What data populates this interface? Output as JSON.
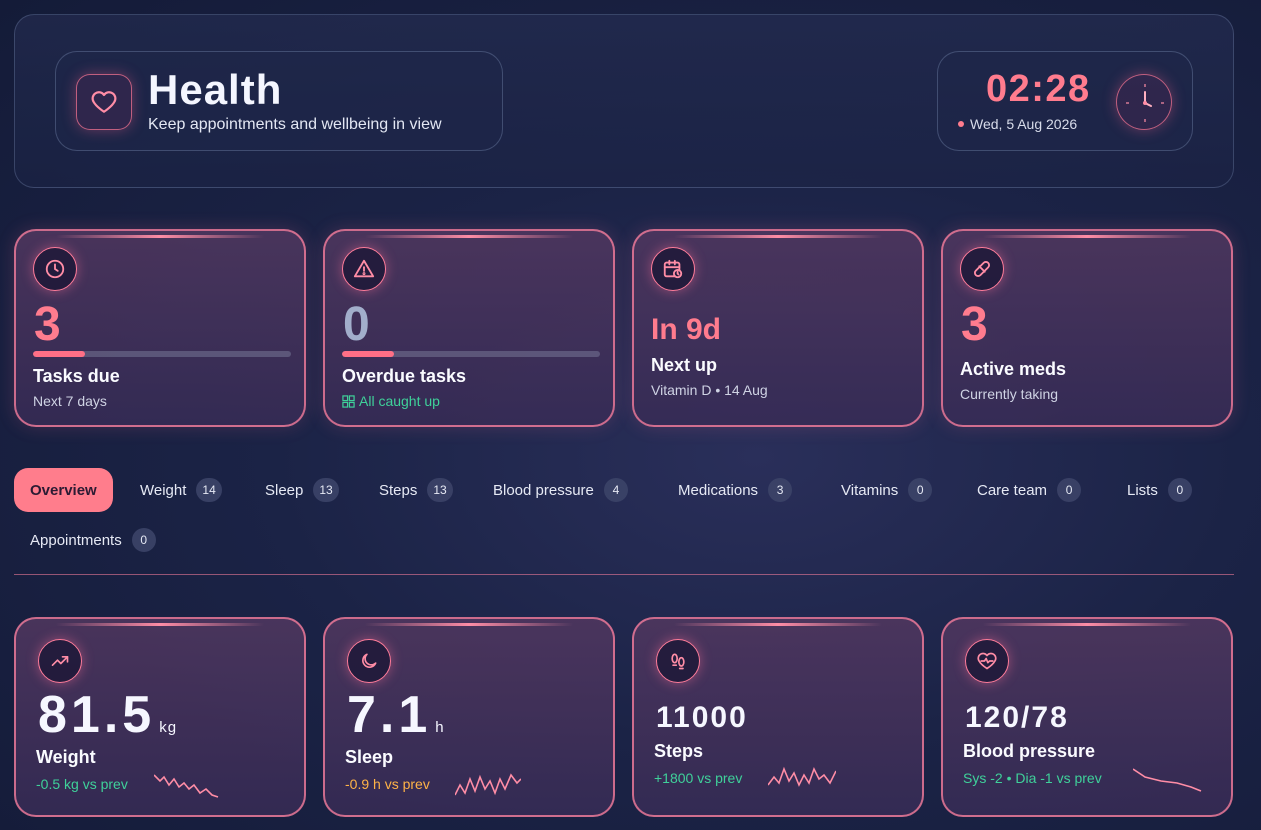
{
  "header": {
    "title": "Health",
    "subtitle": "Keep appointments and wellbeing in view",
    "icon": "heart-icon",
    "time": "02:28",
    "date": "Wed, 5 Aug 2026",
    "accent_color": "#ff7c8e"
  },
  "summary_cards": [
    {
      "icon": "clock-icon",
      "value": "3",
      "label": "Tasks due",
      "sub": "Next 7 days",
      "progress": 0.2
    },
    {
      "icon": "warning-icon",
      "value": "0",
      "label": "Overdue tasks",
      "sub": "All caught up",
      "progress": 0.2
    },
    {
      "icon": "calendar-clock-icon",
      "value": "In 9d",
      "label": "Next up",
      "sub": "Vitamin D • 14 Aug"
    },
    {
      "icon": "pill-icon",
      "value": "3",
      "label": "Active meds",
      "sub": "Currently taking"
    }
  ],
  "tabs": [
    {
      "label": "Overview",
      "count": null,
      "active": true
    },
    {
      "label": "Weight",
      "count": "14"
    },
    {
      "label": "Sleep",
      "count": "13"
    },
    {
      "label": "Steps",
      "count": "13"
    },
    {
      "label": "Blood pressure",
      "count": "4"
    },
    {
      "label": "Medications",
      "count": "3"
    },
    {
      "label": "Vitamins",
      "count": "0"
    },
    {
      "label": "Care team",
      "count": "0"
    },
    {
      "label": "Lists",
      "count": "0"
    },
    {
      "label": "Appointments",
      "count": "0"
    }
  ],
  "metrics": [
    {
      "icon": "trend-up-icon",
      "value": "81.5",
      "unit": "kg",
      "label": "Weight",
      "delta": "-0.5 kg vs prev",
      "delta_color": "#3fd19a"
    },
    {
      "icon": "moon-icon",
      "value": "7.1",
      "unit": "h",
      "label": "Sleep",
      "delta": "-0.9 h vs prev",
      "delta_color": "#ffb347"
    },
    {
      "icon": "footprints-icon",
      "value": "11000",
      "unit": "",
      "label": "Steps",
      "delta": "+1800 vs prev",
      "delta_color": "#3fd19a"
    },
    {
      "icon": "heart-pulse-icon",
      "value": "120/78",
      "unit": "",
      "label": "Blood pressure",
      "delta": "Sys -2 • Dia -1 vs prev",
      "delta_color": "#3fd19a"
    }
  ]
}
